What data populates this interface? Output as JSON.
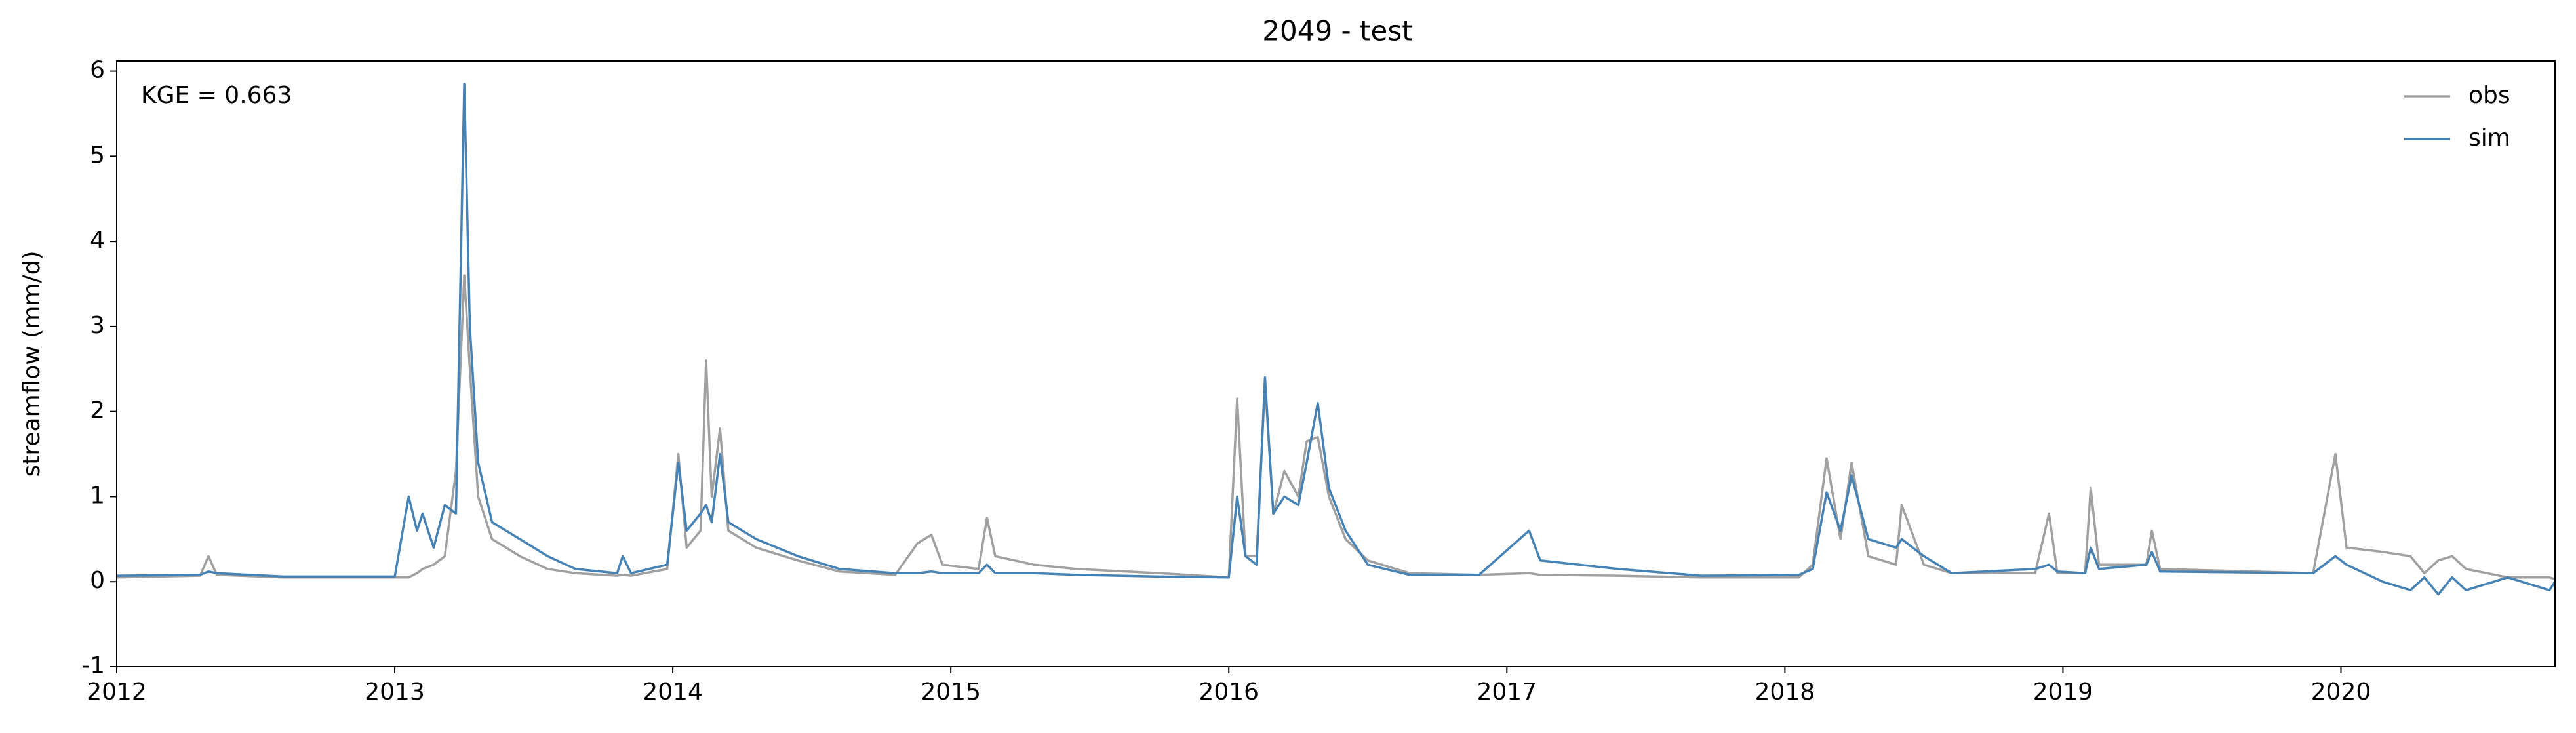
{
  "chart_data": {
    "type": "line",
    "title": "2049 - test",
    "ylabel": "streamflow (mm/d)",
    "annotation": "KGE = 0.663",
    "legend": "upper right",
    "xlim": [
      2012,
      2020.77
    ],
    "xticks": [
      2012,
      2013,
      2014,
      2015,
      2016,
      2017,
      2018,
      2019,
      2020
    ],
    "ylim": [
      -1,
      6.12
    ],
    "yticks": [
      -1,
      0,
      1,
      2,
      3,
      4,
      5,
      6
    ],
    "x": [
      2012.0,
      2012.3,
      2012.33,
      2012.36,
      2012.6,
      2012.9,
      2013.0,
      2013.05,
      2013.08,
      2013.1,
      2013.14,
      2013.18,
      2013.22,
      2013.25,
      2013.27,
      2013.3,
      2013.35,
      2013.45,
      2013.55,
      2013.65,
      2013.8,
      2013.82,
      2013.85,
      2013.98,
      2014.02,
      2014.05,
      2014.1,
      2014.12,
      2014.14,
      2014.17,
      2014.2,
      2014.3,
      2014.45,
      2014.6,
      2014.8,
      2014.88,
      2014.93,
      2014.97,
      2015.1,
      2015.13,
      2015.16,
      2015.3,
      2015.45,
      2015.75,
      2016.0,
      2016.03,
      2016.06,
      2016.1,
      2016.13,
      2016.16,
      2016.2,
      2016.25,
      2016.28,
      2016.32,
      2016.36,
      2016.42,
      2016.5,
      2016.65,
      2016.9,
      2017.08,
      2017.12,
      2017.4,
      2017.7,
      2018.05,
      2018.1,
      2018.15,
      2018.2,
      2018.24,
      2018.3,
      2018.4,
      2018.42,
      2018.5,
      2018.6,
      2018.9,
      2018.95,
      2018.98,
      2019.08,
      2019.1,
      2019.13,
      2019.3,
      2019.32,
      2019.35,
      2019.9,
      2019.98,
      2020.02,
      2020.15,
      2020.25,
      2020.3,
      2020.35,
      2020.4,
      2020.45,
      2020.6,
      2020.75,
      2020.77
    ],
    "series": [
      {
        "name": "obs",
        "color": "#a0a0a0",
        "values": [
          0.05,
          0.07,
          0.3,
          0.08,
          0.05,
          0.05,
          0.05,
          0.05,
          0.1,
          0.15,
          0.2,
          0.3,
          1.3,
          3.6,
          2.5,
          1.0,
          0.5,
          0.3,
          0.15,
          0.1,
          0.07,
          0.08,
          0.07,
          0.15,
          1.5,
          0.4,
          0.6,
          2.6,
          1.0,
          1.8,
          0.6,
          0.4,
          0.25,
          0.12,
          0.08,
          0.45,
          0.55,
          0.2,
          0.15,
          0.75,
          0.3,
          0.2,
          0.15,
          0.1,
          0.05,
          2.15,
          0.3,
          0.3,
          2.35,
          0.8,
          1.3,
          1.0,
          1.65,
          1.7,
          1.0,
          0.5,
          0.25,
          0.1,
          0.08,
          0.1,
          0.08,
          0.07,
          0.05,
          0.05,
          0.2,
          1.45,
          0.5,
          1.4,
          0.3,
          0.2,
          0.9,
          0.2,
          0.1,
          0.1,
          0.8,
          0.1,
          0.1,
          1.1,
          0.2,
          0.2,
          0.6,
          0.15,
          0.1,
          1.5,
          0.4,
          0.35,
          0.3,
          0.1,
          0.25,
          0.3,
          0.15,
          0.05,
          0.05,
          0.03
        ]
      },
      {
        "name": "sim",
        "color": "#4682b4",
        "values": [
          0.07,
          0.08,
          0.12,
          0.1,
          0.06,
          0.06,
          0.06,
          1.0,
          0.6,
          0.8,
          0.4,
          0.9,
          0.8,
          5.85,
          3.0,
          1.4,
          0.7,
          0.5,
          0.3,
          0.15,
          0.1,
          0.3,
          0.1,
          0.2,
          1.4,
          0.6,
          0.8,
          0.9,
          0.7,
          1.5,
          0.7,
          0.5,
          0.3,
          0.15,
          0.1,
          0.1,
          0.12,
          0.1,
          0.1,
          0.2,
          0.1,
          0.1,
          0.08,
          0.06,
          0.05,
          1.0,
          0.3,
          0.2,
          2.4,
          0.8,
          1.0,
          0.9,
          1.4,
          2.1,
          1.1,
          0.6,
          0.2,
          0.08,
          0.08,
          0.6,
          0.25,
          0.15,
          0.07,
          0.08,
          0.15,
          1.05,
          0.6,
          1.25,
          0.5,
          0.4,
          0.5,
          0.3,
          0.1,
          0.15,
          0.2,
          0.12,
          0.1,
          0.4,
          0.15,
          0.2,
          0.35,
          0.12,
          0.1,
          0.3,
          0.2,
          0.0,
          -0.1,
          0.05,
          -0.15,
          0.05,
          -0.1,
          0.05,
          -0.1,
          0.0
        ]
      }
    ]
  }
}
